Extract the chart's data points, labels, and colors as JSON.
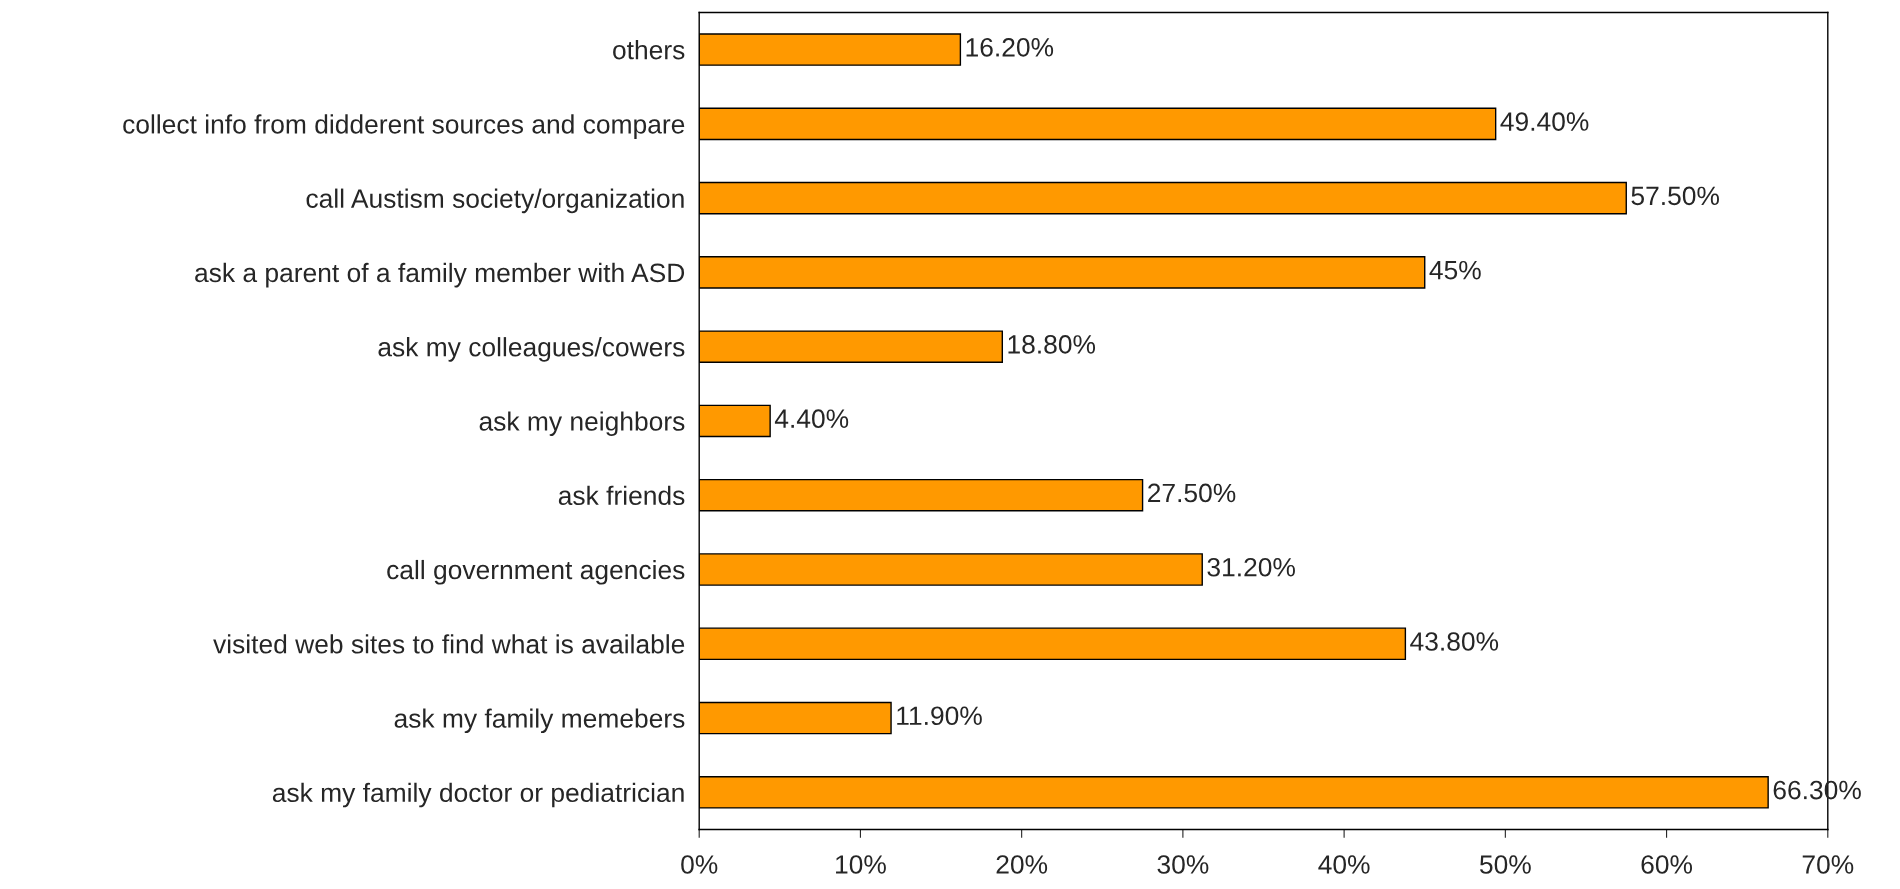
{
  "chart_data": {
    "type": "bar",
    "orientation": "horizontal",
    "categories": [
      "others",
      "collect info from didderent sources and compare",
      "call Austism society/organization",
      "ask a parent of a family member with ASD",
      "ask my colleagues/cowers",
      "ask my neighbors",
      "ask friends",
      "call government agencies",
      "visited web sites to find what is available",
      "ask my family memebers",
      "ask my family doctor or pediatrician"
    ],
    "values": [
      16.2,
      49.4,
      57.5,
      45,
      18.8,
      4.4,
      27.5,
      31.2,
      43.8,
      11.9,
      66.3
    ],
    "value_labels": [
      "16.20%",
      "49.40%",
      "57.50%",
      "45%",
      "18.80%",
      "4.40%",
      "27.50%",
      "31.20%",
      "43.80%",
      "11.90%",
      "66.30%"
    ],
    "color": "#ff9900",
    "xlim": [
      0,
      70
    ],
    "xticks": [
      {
        "value": 0,
        "label": "0%"
      },
      {
        "value": 10,
        "label": "10%"
      },
      {
        "value": 20,
        "label": "20%"
      },
      {
        "value": 30,
        "label": "30%"
      },
      {
        "value": 40,
        "label": "40%"
      },
      {
        "value": 50,
        "label": "50%"
      },
      {
        "value": 60,
        "label": "60%"
      },
      {
        "value": 70,
        "label": "70%"
      }
    ],
    "grid": false,
    "legend": false
  }
}
